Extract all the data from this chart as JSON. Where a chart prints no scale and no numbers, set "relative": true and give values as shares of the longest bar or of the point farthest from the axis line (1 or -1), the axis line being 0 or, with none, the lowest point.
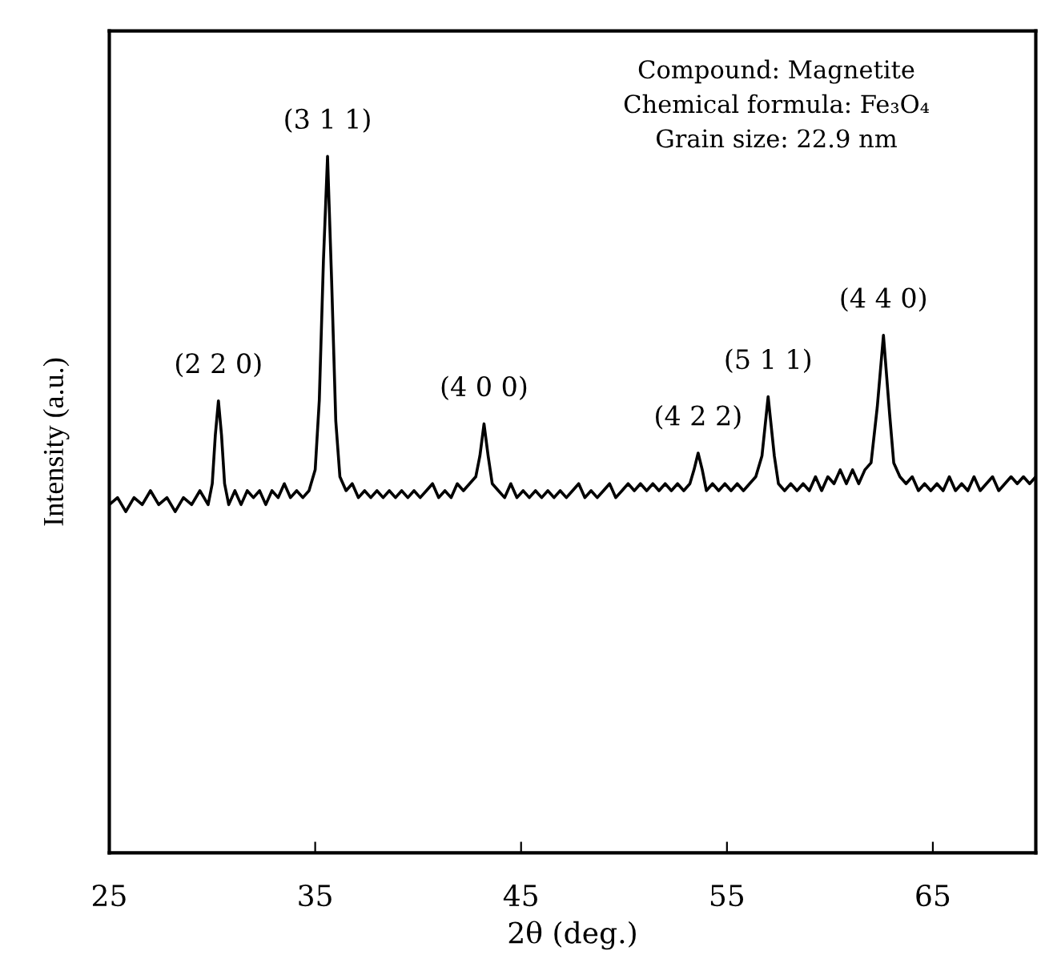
{
  "chart_data": {
    "type": "line",
    "xlabel": "2θ (deg.)",
    "ylabel": "Intensity (a.u.)",
    "relative": true,
    "tick_labels": "x",
    "grid": false,
    "legend": false,
    "xlim": [
      25,
      70
    ],
    "xticks": [
      25,
      35,
      45,
      55,
      65
    ],
    "series": [
      {
        "color": "#000000",
        "x": [
          25.0,
          25.4,
          25.8,
          26.2,
          26.6,
          27.0,
          27.4,
          27.8,
          28.2,
          28.6,
          29.0,
          29.4,
          29.8,
          30.0,
          30.15,
          30.3,
          30.45,
          30.6,
          30.8,
          31.1,
          31.4,
          31.7,
          32.0,
          32.3,
          32.6,
          32.9,
          33.2,
          33.5,
          33.8,
          34.1,
          34.4,
          34.7,
          35.0,
          35.2,
          35.4,
          35.6,
          35.8,
          36.0,
          36.2,
          36.5,
          36.8,
          37.1,
          37.4,
          37.7,
          38.0,
          38.3,
          38.6,
          38.9,
          39.2,
          39.5,
          39.8,
          40.1,
          40.4,
          40.7,
          41.0,
          41.3,
          41.6,
          41.9,
          42.2,
          42.5,
          42.8,
          43.0,
          43.2,
          43.4,
          43.6,
          43.9,
          44.2,
          44.5,
          44.8,
          45.1,
          45.4,
          45.7,
          46.0,
          46.3,
          46.6,
          46.9,
          47.2,
          47.5,
          47.8,
          48.1,
          48.4,
          48.7,
          49.0,
          49.3,
          49.6,
          49.9,
          50.2,
          50.5,
          50.8,
          51.1,
          51.4,
          51.7,
          52.0,
          52.3,
          52.6,
          52.9,
          53.2,
          53.4,
          53.6,
          53.8,
          54.0,
          54.3,
          54.6,
          54.9,
          55.2,
          55.5,
          55.8,
          56.1,
          56.4,
          56.7,
          57.0,
          57.3,
          57.5,
          57.8,
          58.1,
          58.4,
          58.7,
          59.0,
          59.3,
          59.6,
          59.9,
          60.2,
          60.5,
          60.8,
          61.1,
          61.4,
          61.7,
          62.0,
          62.3,
          62.6,
          62.9,
          63.1,
          63.4,
          63.7,
          64.0,
          64.3,
          64.6,
          64.9,
          65.2,
          65.5,
          65.8,
          66.1,
          66.4,
          66.7,
          67.0,
          67.3,
          67.6,
          67.9,
          68.2,
          68.5,
          68.8,
          69.1,
          69.4,
          69.7,
          70.0
        ],
        "values": [
          0.5,
          0.51,
          0.49,
          0.51,
          0.5,
          0.52,
          0.5,
          0.51,
          0.49,
          0.51,
          0.5,
          0.52,
          0.5,
          0.53,
          0.6,
          0.649,
          0.6,
          0.53,
          0.5,
          0.52,
          0.5,
          0.52,
          0.51,
          0.52,
          0.5,
          0.52,
          0.51,
          0.53,
          0.51,
          0.52,
          0.51,
          0.52,
          0.55,
          0.65,
          0.85,
          1.0,
          0.82,
          0.62,
          0.54,
          0.52,
          0.53,
          0.51,
          0.52,
          0.51,
          0.52,
          0.51,
          0.52,
          0.51,
          0.52,
          0.51,
          0.52,
          0.51,
          0.52,
          0.53,
          0.51,
          0.52,
          0.51,
          0.53,
          0.52,
          0.53,
          0.54,
          0.57,
          0.616,
          0.57,
          0.53,
          0.52,
          0.51,
          0.53,
          0.51,
          0.52,
          0.51,
          0.52,
          0.51,
          0.52,
          0.51,
          0.52,
          0.51,
          0.52,
          0.53,
          0.51,
          0.52,
          0.51,
          0.52,
          0.53,
          0.51,
          0.52,
          0.53,
          0.52,
          0.53,
          0.52,
          0.53,
          0.52,
          0.53,
          0.52,
          0.53,
          0.52,
          0.53,
          0.55,
          0.574,
          0.55,
          0.52,
          0.53,
          0.52,
          0.53,
          0.52,
          0.53,
          0.52,
          0.53,
          0.54,
          0.57,
          0.655,
          0.57,
          0.53,
          0.52,
          0.53,
          0.52,
          0.53,
          0.52,
          0.54,
          0.52,
          0.54,
          0.53,
          0.55,
          0.53,
          0.55,
          0.53,
          0.55,
          0.56,
          0.64,
          0.743,
          0.63,
          0.56,
          0.54,
          0.53,
          0.54,
          0.52,
          0.53,
          0.52,
          0.53,
          0.52,
          0.54,
          0.52,
          0.53,
          0.52,
          0.54,
          0.52,
          0.53,
          0.54,
          0.52,
          0.53,
          0.54,
          0.53,
          0.54,
          0.53,
          0.54
        ]
      }
    ],
    "annotations": [
      {
        "text": "(2 2 0)",
        "x": 30.3,
        "y": 0.649
      },
      {
        "text": "(3 1 1)",
        "x": 35.6,
        "y": 1.0
      },
      {
        "text": "(4 0 0)",
        "x": 43.2,
        "y": 0.616
      },
      {
        "text": "(4 2 2)",
        "x": 53.6,
        "y": 0.574
      },
      {
        "text": "(5 1 1)",
        "x": 57.0,
        "y": 0.655
      },
      {
        "text": "(4 4 0)",
        "x": 62.6,
        "y": 0.743
      },
      "Compound: Magnetite",
      "Chemical formula: Fe₃O₄",
      "Grain size: 22.9 nm"
    ]
  }
}
